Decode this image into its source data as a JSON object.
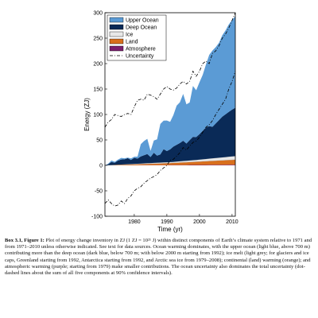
{
  "chart_data": {
    "type": "area",
    "stacked": true,
    "title": "",
    "xlabel": "Time (yr)",
    "ylabel": "Energy (ZJ)",
    "xlim": [
      1971,
      2011
    ],
    "ylim": [
      -100,
      300
    ],
    "x_ticks": [
      1980,
      1990,
      2000,
      2010
    ],
    "y_ticks": [
      -100,
      -50,
      0,
      50,
      100,
      150,
      200,
      250,
      300
    ],
    "legend_position": "top-left",
    "x": [
      1971,
      1972,
      1973,
      1974,
      1975,
      1976,
      1977,
      1978,
      1979,
      1980,
      1981,
      1982,
      1983,
      1984,
      1985,
      1986,
      1987,
      1988,
      1989,
      1990,
      1991,
      1992,
      1993,
      1994,
      1995,
      1996,
      1997,
      1998,
      1999,
      2000,
      2001,
      2002,
      2003,
      2004,
      2005,
      2006,
      2007,
      2008,
      2009,
      2010,
      2011
    ],
    "series": [
      {
        "name": "Atmosphere",
        "color": "#7b1f6e",
        "values": [
          0,
          0,
          0,
          0.1,
          0.1,
          0.1,
          0.1,
          0.2,
          0.2,
          0.2,
          0.2,
          0.3,
          0.3,
          0.3,
          0.3,
          0.3,
          0.4,
          0.4,
          0.4,
          0.4,
          0.5,
          0.5,
          0.5,
          0.6,
          0.6,
          0.6,
          0.7,
          0.7,
          0.7,
          0.8,
          0.8,
          0.8,
          0.9,
          0.9,
          0.9,
          1.0,
          1.0,
          1.0,
          1.1,
          1.1,
          1.2
        ]
      },
      {
        "name": "Land",
        "color": "#d86f1c",
        "values": [
          0,
          0.2,
          0.4,
          0.6,
          0.8,
          1,
          1.2,
          1.4,
          1.6,
          1.8,
          2,
          2.2,
          2.4,
          2.6,
          2.8,
          3,
          3.2,
          3.4,
          3.6,
          3.8,
          4,
          4.3,
          4.6,
          4.9,
          5.2,
          5.5,
          5.8,
          6.1,
          6.4,
          6.7,
          7,
          7.3,
          7.6,
          7.9,
          8.2,
          8.5,
          8.8,
          9.1,
          9.4,
          9.7,
          10
        ]
      },
      {
        "name": "Ice",
        "color": "#e8e8e8",
        "values": [
          0,
          0.1,
          0.2,
          0.3,
          0.4,
          0.5,
          0.6,
          0.7,
          0.8,
          0.9,
          1,
          1.1,
          1.2,
          1.3,
          1.4,
          1.5,
          1.6,
          1.7,
          1.8,
          1.9,
          2,
          2.1,
          2.3,
          2.5,
          2.7,
          2.9,
          3.1,
          3.3,
          3.5,
          3.8,
          4.1,
          4.4,
          4.7,
          5,
          5.3,
          5.6,
          5.9,
          6.2,
          6.5,
          6.8,
          7
        ]
      },
      {
        "name": "Deep Ocean",
        "color": "#0a2a57",
        "values": [
          0,
          2,
          6,
          4,
          8,
          10,
          10,
          12,
          8,
          12,
          10,
          14,
          16,
          18,
          12,
          20,
          14,
          16,
          26,
          22,
          25,
          30,
          33,
          36,
          40,
          34,
          40,
          46,
          45,
          50,
          56,
          62,
          64,
          62,
          68,
          74,
          80,
          84,
          88,
          92,
          95
        ]
      },
      {
        "name": "Upper Ocean",
        "color": "#5b9bd5",
        "values": [
          0,
          1,
          3,
          2,
          2,
          3,
          2,
          1,
          3,
          2,
          4,
          24,
          28,
          30,
          12,
          24,
          32,
          60,
          56,
          60,
          54,
          62,
          77,
          80,
          92,
          77,
          74,
          100,
          92,
          102,
          110,
          124,
          140,
          150,
          150,
          152,
          160,
          165,
          172,
          176,
          180
        ]
      }
    ],
    "uncertainty": {
      "name": "Uncertainty",
      "upper": [
        75,
        85,
        90,
        100,
        98,
        96,
        100,
        102,
        100,
        115,
        128,
        130,
        128,
        140,
        138,
        135,
        130,
        140,
        150,
        155,
        150,
        148,
        152,
        160,
        165,
        160,
        165,
        185,
        175,
        185,
        200,
        205,
        200,
        220,
        225,
        235,
        250,
        258,
        270,
        285,
        300
      ],
      "lower": [
        -75,
        -68,
        -75,
        -80,
        -78,
        -70,
        -75,
        -65,
        -60,
        -50,
        -45,
        -42,
        -35,
        -30,
        -25,
        -22,
        -18,
        -10,
        -5,
        0,
        10,
        12,
        18,
        25,
        35,
        30,
        38,
        45,
        48,
        55,
        65,
        75,
        80,
        88,
        100,
        110,
        120,
        130,
        150,
        165,
        185
      ]
    }
  },
  "caption": {
    "bold": "Box 3.1, Figure 1:",
    "text": " Plot of energy change inventory in ZJ (1 ZJ = 10²¹ J) within distinct components of Earth’s climate system relative to 1971 and from 1971–2010 unless otherwise indicated. See text for data sources. Ocean warming dominates, with the upper ocean (light blue, above 700 m) contributing more than the deep ocean (dark blue, below 700 m; with below 2000 m starting from 1992); ice melt (light grey; for glaciers and ice caps, Greenland starting from 1992, Antarctica starting from 1992, and Arctic sea ice from 1979–2008); continental (land) warming (orange); and atmospheric warming (purple; starting from 1979) make smaller contributions. The ocean uncertainty also dominates the total uncertainty (dot-dashed lines about the sum of all five components at 90% confidence intervals)."
  }
}
